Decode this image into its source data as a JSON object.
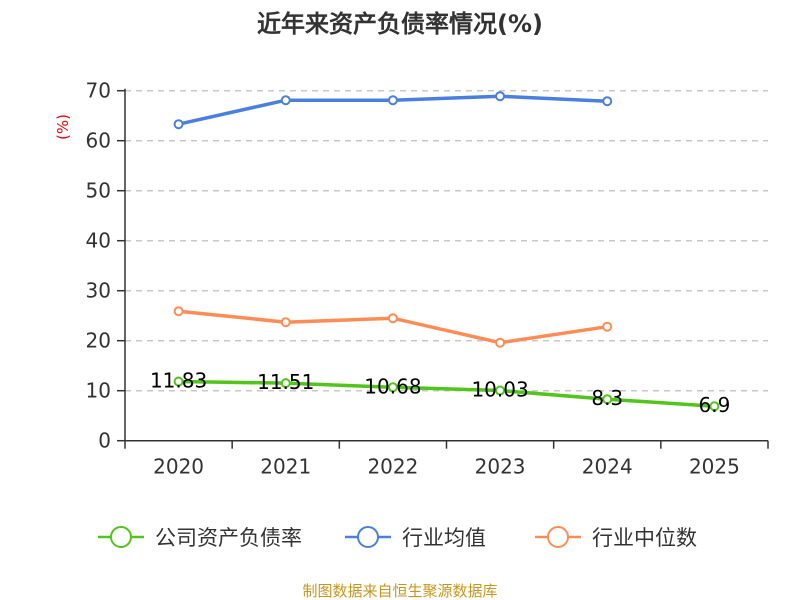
{
  "chart_data": {
    "type": "line",
    "title": "近年来资产负债率情况(%)",
    "ylabel": "(%)",
    "xlabel": "",
    "categories": [
      "2020",
      "2021",
      "2022",
      "2023",
      "2024",
      "2025"
    ],
    "ylim": [
      0,
      70
    ],
    "yticks": [
      0,
      10,
      20,
      30,
      40,
      50,
      60,
      70
    ],
    "grid": true,
    "legend_position": "bottom",
    "series": [
      {
        "name": "公司资产负债率",
        "color": "#52c41a",
        "values": [
          11.83,
          11.51,
          10.68,
          10.03,
          8.3,
          6.9
        ],
        "labels": [
          "11.83",
          "11.51",
          "10.68",
          "10.03",
          "8.3",
          "6.9"
        ]
      },
      {
        "name": "行业均值",
        "color": "#4a7fe0",
        "values": [
          63.3,
          68.1,
          68.1,
          68.9,
          67.9,
          null
        ]
      },
      {
        "name": "行业中位数",
        "color": "#ff8c55",
        "values": [
          25.9,
          23.7,
          24.5,
          19.6,
          22.8,
          null
        ]
      }
    ]
  },
  "source": "制图数据来自恒生聚源数据库"
}
